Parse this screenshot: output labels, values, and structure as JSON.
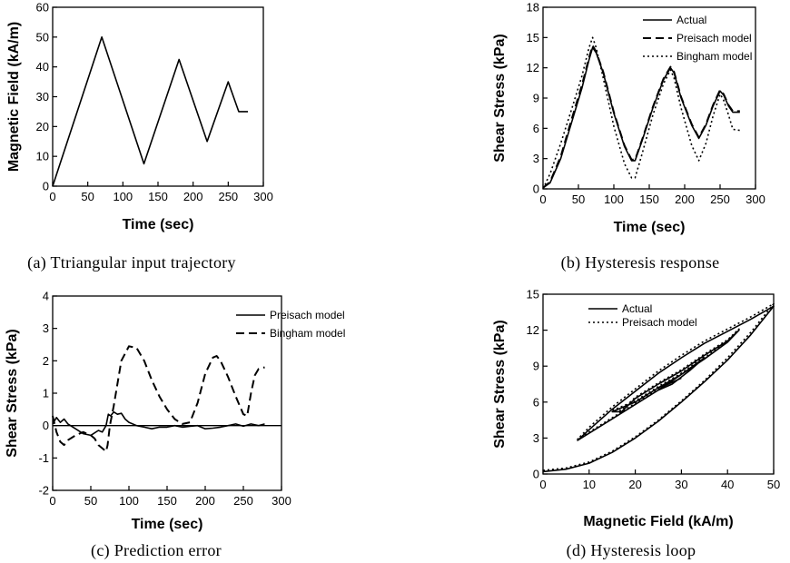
{
  "chart_data": [
    {
      "type": "line",
      "caption": "(a) Ttriangular input trajectory",
      "xlabel": "Time (sec)",
      "ylabel": "Magnetic Field (kA/m)",
      "xlim": [
        0,
        300
      ],
      "ylim": [
        0,
        60
      ],
      "xticks": [
        0,
        50,
        100,
        150,
        200,
        250,
        300
      ],
      "yticks": [
        0,
        10,
        20,
        30,
        40,
        50,
        60
      ],
      "series": [
        {
          "style": "solid",
          "x": [
            0,
            70,
            130,
            180,
            220,
            250,
            265,
            278
          ],
          "y": [
            0,
            50,
            7.5,
            42.5,
            15,
            35,
            25,
            25
          ]
        }
      ]
    },
    {
      "type": "line",
      "caption": "(b) Hysteresis response",
      "xlabel": "Time (sec)",
      "ylabel": "Shear Stress (kPa)",
      "xlim": [
        0,
        300
      ],
      "ylim": [
        0,
        18
      ],
      "xticks": [
        0,
        50,
        100,
        150,
        200,
        250,
        300
      ],
      "yticks": [
        0,
        3,
        6,
        9,
        12,
        15,
        18
      ],
      "legend_position": "top-right",
      "series": [
        {
          "name": "Actual",
          "style": "solid",
          "x": [
            0,
            10,
            25,
            40,
            55,
            65,
            70,
            75,
            85,
            100,
            115,
            125,
            130,
            140,
            155,
            170,
            180,
            185,
            195,
            210,
            220,
            230,
            240,
            250,
            255,
            262,
            268,
            278
          ],
          "y": [
            0.1,
            0.6,
            3,
            6.5,
            10,
            12.8,
            14,
            13.5,
            11.5,
            7.5,
            4.2,
            2.8,
            2.8,
            4.8,
            8,
            10.8,
            12,
            11.5,
            9,
            6.3,
            5,
            6.3,
            8.2,
            9.7,
            9.3,
            8.2,
            7.6,
            7.6
          ]
        },
        {
          "name": "Preisach model",
          "style": "dashed",
          "x": [
            0,
            10,
            25,
            40,
            55,
            65,
            70,
            75,
            85,
            100,
            115,
            125,
            130,
            140,
            155,
            170,
            180,
            185,
            195,
            210,
            220,
            230,
            240,
            250,
            255,
            262,
            268,
            278
          ],
          "y": [
            0.1,
            0.7,
            3.2,
            6.8,
            10.3,
            13,
            14.2,
            13.6,
            11.6,
            7.6,
            4.3,
            2.9,
            2.9,
            4.9,
            8.1,
            10.9,
            12.1,
            11.6,
            9.1,
            6.4,
            5.1,
            6.4,
            8.3,
            9.8,
            9.4,
            8.3,
            7.7,
            7.7
          ]
        },
        {
          "name": "Bingham model",
          "style": "dotted",
          "x": [
            0,
            10,
            25,
            40,
            55,
            65,
            70,
            75,
            85,
            100,
            115,
            125,
            130,
            140,
            155,
            170,
            180,
            185,
            195,
            210,
            220,
            230,
            240,
            250,
            255,
            262,
            268,
            278
          ],
          "y": [
            0,
            1.5,
            4.5,
            7.8,
            11.2,
            14,
            15,
            14,
            11,
            6.2,
            2.5,
            1.1,
            1.1,
            3.5,
            7.3,
            10.4,
            11.8,
            11,
            8,
            4.3,
            2.8,
            4.5,
            7.2,
            9.4,
            8.8,
            7.3,
            5.9,
            5.8
          ]
        }
      ]
    },
    {
      "type": "line",
      "caption": "(c) Prediction error",
      "xlabel": "Time (sec)",
      "ylabel": "Shear Stress (kPa)",
      "xlim": [
        0,
        300
      ],
      "ylim": [
        -2,
        4
      ],
      "xticks": [
        0,
        50,
        100,
        150,
        200,
        250,
        300
      ],
      "yticks": [
        -2,
        -1,
        0,
        1,
        2,
        3,
        4
      ],
      "zero_line": true,
      "legend_position": "top-right",
      "series": [
        {
          "name": "Preisach model",
          "style": "solid",
          "x": [
            0,
            5,
            10,
            15,
            20,
            30,
            40,
            50,
            60,
            65,
            70,
            73,
            76,
            80,
            85,
            90,
            95,
            100,
            110,
            120,
            130,
            140,
            150,
            160,
            170,
            180,
            190,
            200,
            210,
            220,
            230,
            240,
            250,
            260,
            270,
            278
          ],
          "y": [
            0.05,
            0.25,
            0.1,
            0.2,
            0.05,
            -0.1,
            -0.25,
            -0.3,
            -0.15,
            -0.2,
            0,
            0.35,
            0.3,
            0.42,
            0.35,
            0.38,
            0.2,
            0.1,
            0,
            -0.05,
            -0.1,
            -0.05,
            -0.05,
            0,
            -0.05,
            -0.02,
            0,
            -0.1,
            -0.08,
            -0.05,
            0,
            0.05,
            -0.02,
            0.05,
            0,
            0.05
          ]
        },
        {
          "name": "Bingham model",
          "style": "dashed",
          "x": [
            0,
            5,
            10,
            15,
            20,
            30,
            40,
            50,
            55,
            60,
            65,
            70,
            72,
            75,
            80,
            85,
            90,
            100,
            110,
            120,
            130,
            140,
            150,
            160,
            170,
            180,
            190,
            200,
            210,
            215,
            220,
            230,
            240,
            250,
            255,
            260,
            265,
            270,
            278
          ],
          "y": [
            0.3,
            -0.2,
            -0.5,
            -0.6,
            -0.45,
            -0.3,
            -0.2,
            -0.3,
            -0.4,
            -0.6,
            -0.7,
            -0.8,
            -0.6,
            0,
            0.6,
            1.3,
            2.0,
            2.45,
            2.4,
            2.0,
            1.4,
            0.9,
            0.5,
            0.2,
            0.05,
            0.1,
            0.7,
            1.6,
            2.1,
            2.15,
            2.0,
            1.5,
            0.9,
            0.35,
            0.3,
            1.0,
            1.55,
            1.75,
            1.8
          ]
        }
      ]
    },
    {
      "type": "line",
      "caption": "(d) Hysteresis loop",
      "xlabel": "Magnetic Field (kA/m)",
      "ylabel": "Shear Stress (kPa)",
      "xlim": [
        0,
        50
      ],
      "ylim": [
        0,
        15
      ],
      "xticks": [
        0,
        10,
        20,
        30,
        40,
        50
      ],
      "yticks": [
        0,
        3,
        6,
        9,
        12,
        15
      ],
      "legend_position": "top-left",
      "series": [
        {
          "name": "Actual",
          "style": "solid",
          "x": [
            0,
            5,
            10,
            15,
            20,
            25,
            30,
            35,
            40,
            45,
            50,
            45,
            40,
            35,
            30,
            25,
            20,
            15,
            10,
            7.5,
            10,
            15,
            20,
            25,
            30,
            35,
            40,
            42.5,
            40,
            35,
            30,
            25,
            20,
            17,
            15,
            20,
            25,
            30,
            35,
            32,
            28,
            25,
            26,
            30
          ],
          "y": [
            0.2,
            0.4,
            0.9,
            1.8,
            3.0,
            4.4,
            6.0,
            7.7,
            9.5,
            11.6,
            14.0,
            12.9,
            11.9,
            10.9,
            9.7,
            8.4,
            6.9,
            5.4,
            3.7,
            2.8,
            3.4,
            4.6,
            5.8,
            7.0,
            8.3,
            9.6,
            11.0,
            12.0,
            11.1,
            9.9,
            8.6,
            7.5,
            6.3,
            5.2,
            5.2,
            6.0,
            7.2,
            8.3,
            9.7,
            8.7,
            7.5,
            7.0,
            7.3,
            8.0
          ]
        },
        {
          "name": "Preisach model",
          "style": "dotted",
          "x": [
            0,
            5,
            10,
            15,
            20,
            25,
            30,
            35,
            40,
            45,
            50,
            45,
            40,
            35,
            30,
            25,
            20,
            15,
            10,
            7.5,
            10,
            15,
            20,
            25,
            30,
            35,
            40,
            42.5,
            40,
            35,
            30,
            25,
            20,
            17,
            15,
            20,
            25,
            30,
            35
          ],
          "y": [
            0.3,
            0.5,
            1.0,
            1.9,
            3.1,
            4.5,
            6.1,
            7.8,
            9.7,
            11.8,
            14.2,
            13.1,
            12.1,
            11.1,
            9.9,
            8.6,
            7.1,
            5.6,
            3.9,
            2.9,
            3.5,
            4.7,
            5.9,
            7.1,
            8.4,
            9.7,
            11.1,
            12.1,
            11.2,
            10.0,
            8.7,
            7.6,
            6.4,
            5.3,
            5.3,
            6.1,
            7.3,
            8.4,
            9.8
          ]
        }
      ]
    }
  ]
}
